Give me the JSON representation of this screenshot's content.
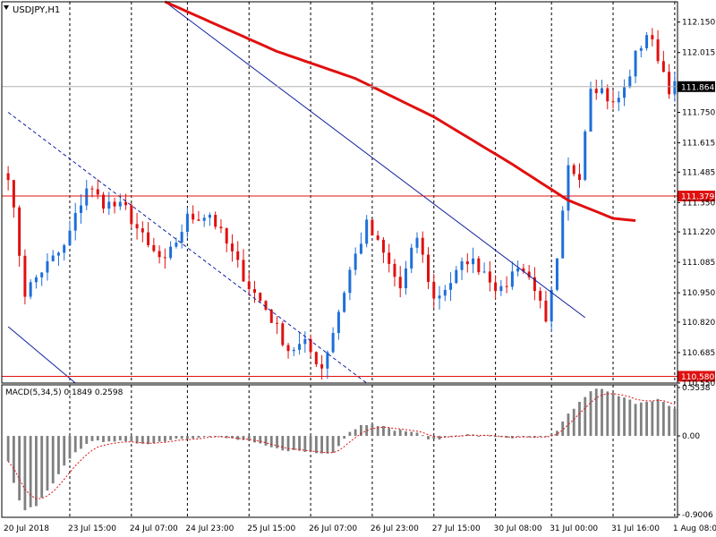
{
  "symbol_label": "USDJPY,H1",
  "indicator_label": "MACD(5,34,5) 0.1849 0.2598",
  "colors": {
    "bull": "#1e6fd9",
    "bear": "#e01010",
    "ma": "#e01010",
    "channel": "#1020a0",
    "hline": "#e01010",
    "grid": "#000000",
    "macd_bar": "#808080",
    "signal": "#e01010"
  },
  "chart_data": [
    {
      "type": "candlestick",
      "title": "USDJPY,H1",
      "ylim": [
        110.55,
        112.24
      ],
      "y_ticks": [
        "112.150",
        "112.015",
        "111.750",
        "111.615",
        "111.485",
        "111.350",
        "111.220",
        "111.085",
        "110.950",
        "110.820",
        "110.685",
        "110.550"
      ],
      "x_ticks": [
        "20 Jul 2018",
        "23 Jul 15:00",
        "24 Jul 07:00",
        "24 Jul 23:00",
        "25 Jul 15:00",
        "26 Jul 07:00",
        "26 Jul 23:00",
        "27 Jul 15:00",
        "30 Jul 08:00",
        "31 Jul 00:00",
        "31 Jul 16:00",
        "1 Aug 08:00"
      ],
      "grid": "vertical dashed",
      "bar_count": 120,
      "anchors": [
        [
          0,
          111.48
        ],
        [
          3,
          110.95
        ],
        [
          6,
          111.05
        ],
        [
          10,
          111.15
        ],
        [
          14,
          111.42
        ],
        [
          17,
          111.35
        ],
        [
          21,
          111.32
        ],
        [
          25,
          111.15
        ],
        [
          28,
          111.08
        ],
        [
          32,
          111.28
        ],
        [
          36,
          111.3
        ],
        [
          40,
          111.12
        ],
        [
          43,
          110.98
        ],
        [
          46,
          110.88
        ],
        [
          50,
          110.7
        ],
        [
          53,
          110.72
        ],
        [
          56,
          110.62
        ],
        [
          58,
          110.78
        ],
        [
          61,
          111.05
        ],
        [
          64,
          111.25
        ],
        [
          67,
          111.12
        ],
        [
          70,
          110.97
        ],
        [
          73,
          111.2
        ],
        [
          76,
          110.92
        ],
        [
          79,
          111.0
        ],
        [
          82,
          111.1
        ],
        [
          85,
          111.05
        ],
        [
          88,
          110.95
        ],
        [
          91,
          111.08
        ],
        [
          94,
          110.98
        ],
        [
          96,
          110.8
        ],
        [
          98,
          111.08
        ],
        [
          100,
          111.5
        ],
        [
          102,
          111.48
        ],
        [
          104,
          111.88
        ],
        [
          106,
          111.85
        ],
        [
          108,
          111.78
        ],
        [
          110,
          111.85
        ],
        [
          112,
          112.0
        ],
        [
          114,
          112.1
        ],
        [
          116,
          112.0
        ],
        [
          118,
          111.86
        ],
        [
          119,
          111.864
        ]
      ],
      "moving_average": {
        "anchors": [
          [
            28,
            112.24
          ],
          [
            48,
            112.02
          ],
          [
            62,
            111.9
          ],
          [
            76,
            111.73
          ],
          [
            90,
            111.52
          ],
          [
            100,
            111.36
          ],
          [
            108,
            111.28
          ],
          [
            112,
            111.27
          ]
        ]
      },
      "channel_lines": [
        {
          "style": "solid",
          "points": [
            [
              28,
              112.24
            ],
            [
              103,
              110.84
            ]
          ]
        },
        {
          "style": "solid",
          "points": [
            [
              0,
              110.8
            ],
            [
              12,
              110.55
            ]
          ]
        },
        {
          "style": "dashed",
          "points": [
            [
              0,
              111.75
            ],
            [
              64,
              110.55
            ]
          ]
        }
      ],
      "horizontal_lines": [
        {
          "value": 111.864,
          "label": "111.864",
          "kind": "current"
        },
        {
          "value": 111.379,
          "label": "111.379",
          "kind": "level"
        },
        {
          "value": 110.58,
          "label": "110.580",
          "kind": "level"
        }
      ]
    },
    {
      "type": "bar",
      "title": "MACD(5,34,5) 0.1849 0.2598",
      "ylim": [
        -0.9306,
        0.5838
      ],
      "y_ticks": [
        "0.5538",
        "0.00",
        "-0.9006"
      ],
      "main": 0.1849,
      "signal": 0.2598,
      "anchors": [
        [
          0,
          -0.3
        ],
        [
          2,
          -0.75
        ],
        [
          3,
          -0.85
        ],
        [
          5,
          -0.8
        ],
        [
          8,
          -0.55
        ],
        [
          11,
          -0.25
        ],
        [
          14,
          -0.08
        ],
        [
          18,
          -0.05
        ],
        [
          22,
          -0.08
        ],
        [
          26,
          -0.08
        ],
        [
          30,
          -0.03
        ],
        [
          36,
          0.0
        ],
        [
          42,
          -0.05
        ],
        [
          48,
          -0.15
        ],
        [
          53,
          -0.18
        ],
        [
          56,
          -0.2
        ],
        [
          58,
          -0.18
        ],
        [
          61,
          0.05
        ],
        [
          63,
          0.12
        ],
        [
          65,
          0.15
        ],
        [
          68,
          0.08
        ],
        [
          72,
          0.05
        ],
        [
          76,
          -0.05
        ],
        [
          80,
          0.02
        ],
        [
          85,
          0.0
        ],
        [
          90,
          -0.02
        ],
        [
          96,
          -0.02
        ],
        [
          98,
          0.05
        ],
        [
          100,
          0.25
        ],
        [
          103,
          0.45
        ],
        [
          105,
          0.55
        ],
        [
          108,
          0.48
        ],
        [
          112,
          0.38
        ],
        [
          116,
          0.42
        ],
        [
          119,
          0.3
        ]
      ]
    }
  ]
}
